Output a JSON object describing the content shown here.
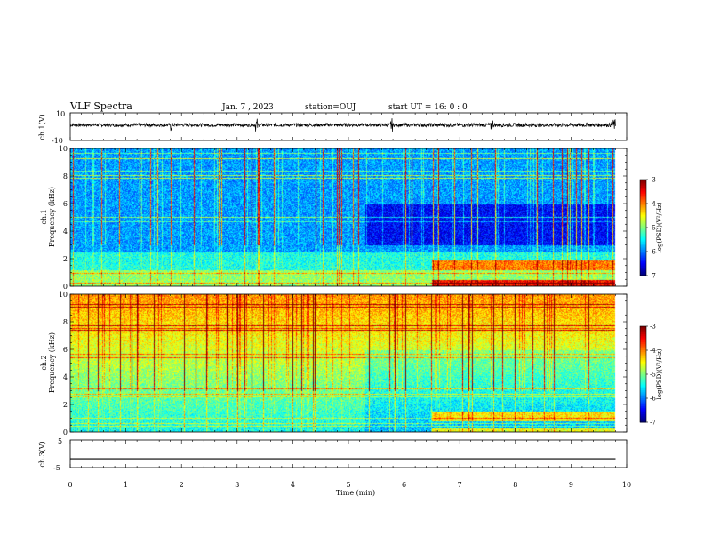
{
  "header": {
    "title": "VLF Spectra",
    "date": "Jan. 7 , 2023",
    "station": "station=OUJ",
    "start_ut": "start UT = 16: 0 : 0"
  },
  "chart_data": [
    {
      "type": "line",
      "name": "ch1-waveform",
      "ylabel": "ch.1(V)",
      "ylim": [
        -10,
        10
      ],
      "yticks": [
        "10",
        "-10"
      ],
      "xlim": [
        0,
        10
      ],
      "baseline": 1.2,
      "envelope": 1.2,
      "spikes_min": [
        1.82,
        3.35,
        5.78,
        7.58,
        9.74
      ],
      "end_burst_min": [
        9.72,
        9.85
      ]
    },
    {
      "type": "heatmap",
      "name": "ch1-spectrogram",
      "ylabel": "ch.1\nFrequency (kHz)",
      "ylim": [
        0,
        10
      ],
      "yticks": [
        "0",
        "2",
        "4",
        "6",
        "8",
        "10"
      ],
      "xlim": [
        0,
        10
      ],
      "data_end_min": 9.8,
      "colorbar": {
        "label": "log(PSD)(V²/Hz)",
        "ticks": [
          "-3",
          "-4",
          "-5",
          "-6",
          "-7"
        ],
        "range": [
          -7,
          -3
        ]
      }
    },
    {
      "type": "heatmap",
      "name": "ch2-spectrogram",
      "ylabel": "ch.2\nFrequency (kHz)",
      "ylim": [
        0,
        10
      ],
      "yticks": [
        "0",
        "2",
        "4",
        "6",
        "8",
        "10"
      ],
      "xlim": [
        0,
        10
      ],
      "data_end_min": 9.8,
      "colorbar": {
        "label": "log(PSD)(V²/Hz)",
        "ticks": [
          "-3",
          "-4",
          "-5",
          "-6",
          "-7"
        ],
        "range": [
          -7,
          -3
        ]
      }
    },
    {
      "type": "line",
      "name": "ch3-waveform",
      "ylabel": "ch.3(V)",
      "ylim": [
        -5,
        5
      ],
      "yticks": [
        "5",
        "0",
        "-5"
      ],
      "xlim": [
        0,
        10
      ],
      "x": [
        0,
        9.8
      ],
      "y": [
        -1.8,
        -1.8
      ],
      "xlabel": "Time (min)",
      "xticks": [
        "0",
        "1",
        "2",
        "3",
        "4",
        "5",
        "6",
        "7",
        "8",
        "9",
        "10"
      ]
    }
  ],
  "colors": {
    "colormap": [
      "#000080",
      "#0000ff",
      "#00a0ff",
      "#00ffff",
      "#60ff90",
      "#c0ff40",
      "#ffff00",
      "#ff8000",
      "#ff0000",
      "#800000"
    ],
    "axis": "#000000"
  }
}
